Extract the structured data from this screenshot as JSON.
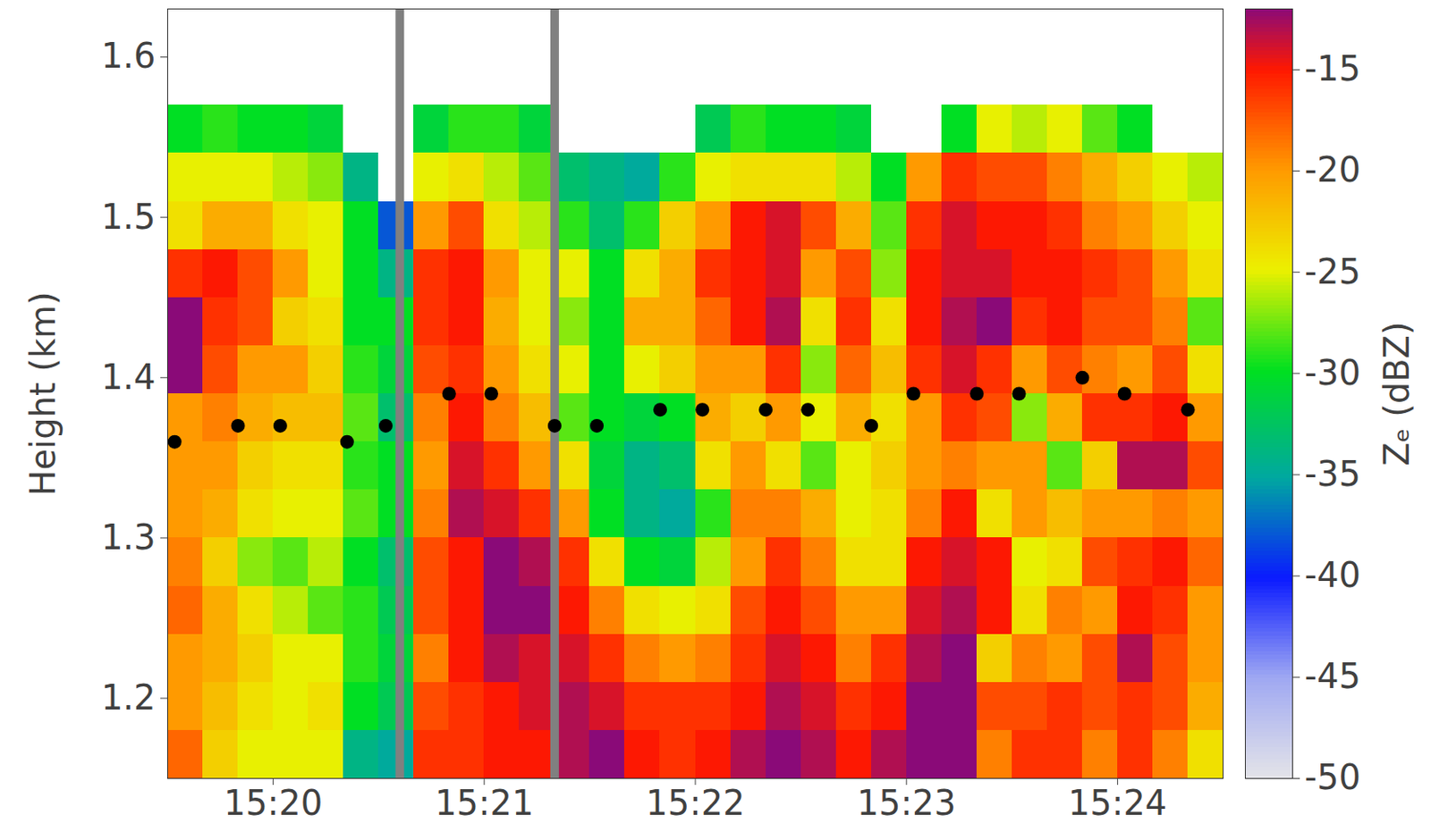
{
  "chart_data": {
    "type": "heatmap",
    "ylabel": "Height (km)",
    "xlim": [
      "15:19:30",
      "15:24:30"
    ],
    "xticks": [
      "15:20",
      "15:21",
      "15:22",
      "15:23",
      "15:24"
    ],
    "ylim": [
      1.15,
      1.63
    ],
    "yticks": [
      1.2,
      1.3,
      1.4,
      1.5,
      1.6
    ],
    "cells": {
      "x_edges": [
        "15:19:30",
        "15:19:40",
        "15:19:50",
        "15:20:00",
        "15:20:10",
        "15:20:20",
        "15:20:30",
        "15:20:40",
        "15:20:50",
        "15:21:00",
        "15:21:10",
        "15:21:20",
        "15:21:30",
        "15:21:40",
        "15:21:50",
        "15:22:00",
        "15:22:10",
        "15:22:20",
        "15:22:30",
        "15:22:40",
        "15:22:50",
        "15:23:00",
        "15:23:10",
        "15:23:20",
        "15:23:30",
        "15:23:40",
        "15:23:50",
        "15:24:00",
        "15:24:10",
        "15:24:20",
        "15:24:30"
      ],
      "y_edges": [
        1.15,
        1.18,
        1.21,
        1.24,
        1.27,
        1.3,
        1.33,
        1.36,
        1.39,
        1.42,
        1.45,
        1.48,
        1.51,
        1.54,
        1.57
      ],
      "values": [
        [
          -18,
          -20,
          -20,
          -18,
          -19,
          -20,
          -20,
          -20,
          -12,
          -12,
          -16,
          -24,
          -25,
          -30
        ],
        [
          -23,
          -22,
          -21,
          -21,
          -23,
          -21,
          -20,
          -19,
          -17,
          -16,
          -15,
          -21,
          -25,
          -29
        ],
        [
          -25,
          -24,
          -23,
          -24,
          -27,
          -24,
          -23,
          -21,
          -20,
          -17,
          -17,
          -21,
          -25,
          -30
        ],
        [
          -25,
          -25,
          -25,
          -26,
          -28,
          -25,
          -24,
          -22,
          -20,
          -23,
          -20,
          -24,
          -26,
          -30
        ],
        [
          -25,
          -24,
          -25,
          -28,
          -26,
          -25,
          -24,
          -22,
          -23,
          -24,
          -25,
          -25,
          -27,
          -31
        ],
        [
          -34,
          -30,
          -29,
          -29,
          -30,
          -28,
          -29,
          -28,
          -29,
          -30,
          -30,
          -30,
          -34,
          null
        ],
        [
          -35,
          -32,
          -31,
          -32,
          -33,
          -30,
          -30,
          -33,
          -31,
          -30,
          -34,
          -38,
          null,
          null
        ],
        [
          -16,
          -17,
          -19,
          -17,
          -17,
          -19,
          -20,
          -19,
          -17,
          -16,
          -16,
          -20,
          -25,
          -31
        ],
        [
          -16,
          -16,
          -15,
          -15,
          -15,
          -13,
          -14,
          -15,
          -16,
          -15,
          -15,
          -17,
          -24,
          -29
        ],
        [
          -15,
          -15,
          -13,
          -12,
          -12,
          -14,
          -16,
          -19,
          -20,
          -21,
          -20,
          -24,
          -26,
          -29
        ],
        [
          -15,
          -14,
          -14,
          -12,
          -13,
          -16,
          -20,
          -22,
          -24,
          -25,
          -25,
          -26,
          -28,
          -31
        ],
        [
          -13,
          -13,
          -14,
          -15,
          -16,
          -20,
          -24,
          -28,
          -25,
          -27,
          -25,
          -29,
          -33,
          null
        ],
        [
          -12,
          -14,
          -16,
          -19,
          -24,
          -30,
          -31,
          -30,
          -30,
          -30,
          -30,
          -33,
          -34,
          null
        ],
        [
          -15,
          -16,
          -19,
          -24,
          -30,
          -34,
          -34,
          -31,
          -25,
          -21,
          -24,
          -29,
          -35,
          null
        ],
        [
          -16,
          -16,
          -20,
          -25,
          -31,
          -35,
          -33,
          -30,
          -23,
          -21,
          -21,
          -23,
          -29,
          null
        ],
        [
          -15,
          -16,
          -19,
          -24,
          -26,
          -29,
          -24,
          -21,
          -20,
          -18,
          -16,
          -20,
          -25,
          -32
        ],
        [
          -13,
          -15,
          -16,
          -17,
          -20,
          -19,
          -20,
          -23,
          -20,
          -15,
          -15,
          -15,
          -24,
          -29
        ],
        [
          -12,
          -13,
          -14,
          -15,
          -16,
          -19,
          -24,
          -20,
          -16,
          -13,
          -14,
          -14,
          -24,
          -30
        ],
        [
          -13,
          -14,
          -15,
          -17,
          -19,
          -21,
          -28,
          -25,
          -27,
          -24,
          -20,
          -17,
          -24,
          -30
        ],
        [
          -15,
          -16,
          -19,
          -20,
          -24,
          -25,
          -25,
          -21,
          -18,
          -16,
          -17,
          -21,
          -26,
          -31
        ],
        [
          -13,
          -15,
          -16,
          -20,
          -24,
          -24,
          -23,
          -24,
          -22,
          -24,
          -27,
          -28,
          -30,
          null
        ],
        [
          -12,
          -12,
          -13,
          -14,
          -15,
          -19,
          -20,
          -20,
          -16,
          -15,
          -15,
          -16,
          -20,
          null
        ],
        [
          -12,
          -12,
          -12,
          -13,
          -14,
          -15,
          -19,
          -16,
          -14,
          -13,
          -14,
          -14,
          -16,
          -30
        ],
        [
          -19,
          -17,
          -23,
          -15,
          -15,
          -24,
          -20,
          -17,
          -16,
          -12,
          -14,
          -15,
          -17,
          -25
        ],
        [
          -16,
          -17,
          -19,
          -24,
          -25,
          -20,
          -20,
          -27,
          -20,
          -16,
          -15,
          -15,
          -17,
          -26
        ],
        [
          -16,
          -16,
          -20,
          -19,
          -24,
          -22,
          -28,
          -21,
          -17,
          -15,
          -15,
          -16,
          -19,
          -25
        ],
        [
          -19,
          -17,
          -17,
          -20,
          -17,
          -20,
          -23,
          -16,
          -19,
          -17,
          -16,
          -19,
          -21,
          -28
        ],
        [
          -16,
          -16,
          -13,
          -15,
          -16,
          -20,
          -13,
          -16,
          -20,
          -17,
          -17,
          -20,
          -23,
          -30
        ],
        [
          -19,
          -17,
          -17,
          -16,
          -15,
          -19,
          -13,
          -15,
          -17,
          -19,
          -20,
          -23,
          -25,
          null
        ],
        [
          -24,
          -21,
          -20,
          -20,
          -18,
          -20,
          -17,
          -20,
          -24,
          -28,
          -24,
          -25,
          -26,
          null
        ]
      ]
    },
    "colorbar": {
      "label": "Zₑ (dBZ)",
      "range": [
        -50,
        -12
      ],
      "ticks": [
        -50,
        -45,
        -40,
        -35,
        -30,
        -25,
        -20,
        -15
      ]
    },
    "series": [
      {
        "type": "scatter",
        "color": "#000000",
        "marker": "circle",
        "x": [
          "15:19:32",
          "15:19:50",
          "15:20:02",
          "15:20:21",
          "15:20:32",
          "15:20:50",
          "15:21:02",
          "15:21:20",
          "15:21:32",
          "15:21:50",
          "15:22:02",
          "15:22:20",
          "15:22:32",
          "15:22:50",
          "15:23:02",
          "15:23:20",
          "15:23:32",
          "15:23:50",
          "15:24:02",
          "15:24:20"
        ],
        "values": [
          1.36,
          1.37,
          1.37,
          1.36,
          1.37,
          1.39,
          1.39,
          1.37,
          1.37,
          1.38,
          1.38,
          1.38,
          1.38,
          1.37,
          1.39,
          1.39,
          1.39,
          1.4,
          1.39,
          1.38
        ]
      }
    ],
    "vlines": {
      "x": [
        "15:20:36",
        "15:21:20"
      ],
      "color": "#808080"
    }
  }
}
